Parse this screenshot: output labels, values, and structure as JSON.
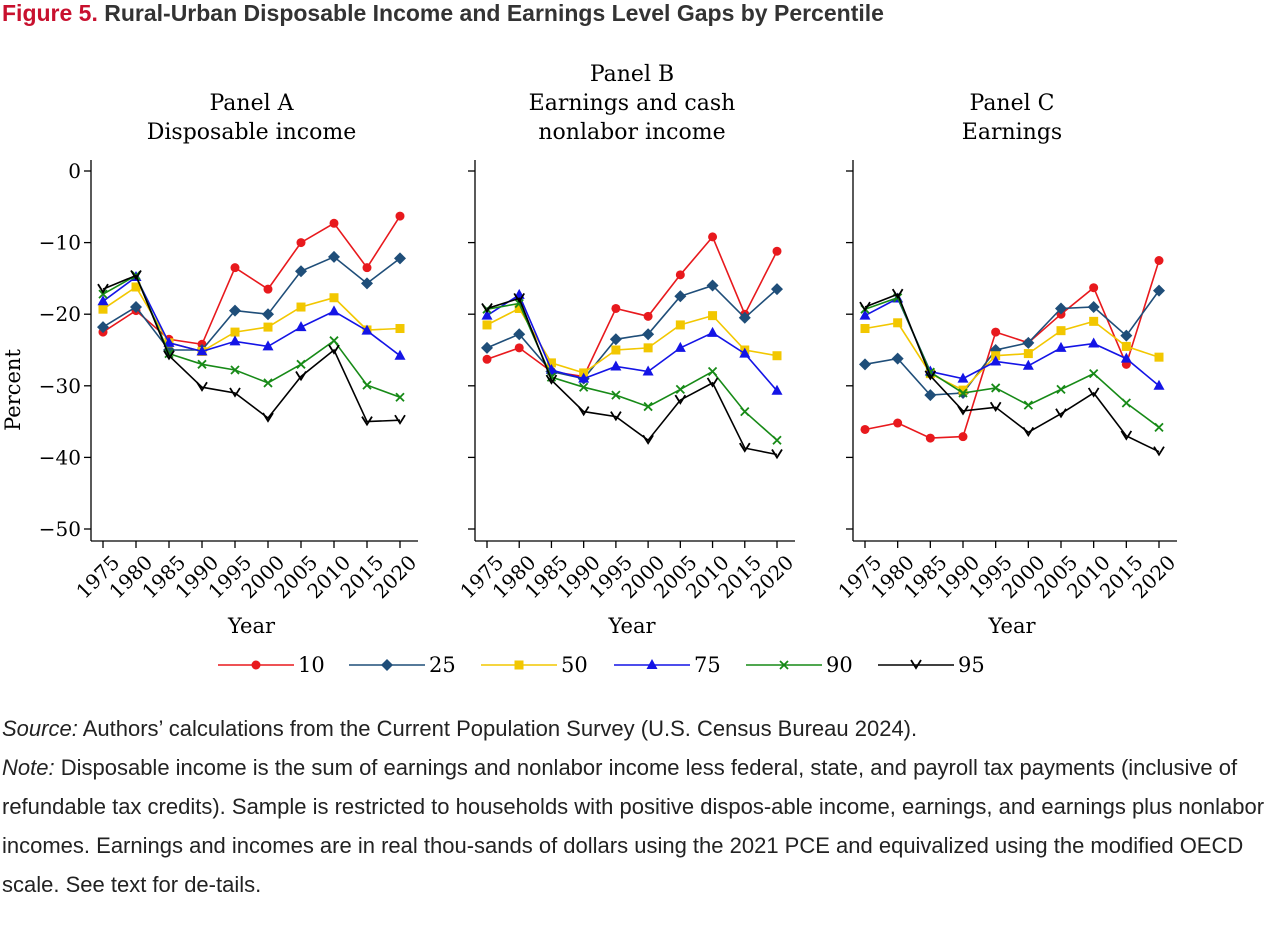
{
  "figure": {
    "label": "Figure 5.",
    "title": "Rural-Urban Disposable Income and Earnings Level Gaps by Percentile"
  },
  "notes": {
    "source_lead": "Source:",
    "source_text": "Authors’ calculations from the Current Population Survey (U.S. Census Bureau 2024).",
    "note_lead": "Note:",
    "note_text": "Disposable income is the sum of earnings and nonlabor income less federal, state, and payroll tax payments (inclusive of refundable tax credits). Sample is restricted to households with positive dispos-able income, earnings, and earnings plus nonlabor incomes. Earnings and incomes are in real thou-sands of dollars using the 2021 PCE and equivalized using the modified OECD scale. See text for de-tails."
  },
  "chart_data": {
    "type": "line",
    "x": [
      1975,
      1980,
      1985,
      1990,
      1995,
      2000,
      2005,
      2010,
      2015,
      2020
    ],
    "xlabel": "Year",
    "ylabel": "Percent",
    "ylim": [
      -50,
      0
    ],
    "yticks": [
      0,
      -10,
      -20,
      -30,
      -40,
      -50
    ],
    "ytick_labels": [
      "0",
      "−10",
      "−20",
      "−30",
      "−40",
      "−50"
    ],
    "grid": false,
    "legend_position": "bottom",
    "series_styles": [
      {
        "name": "10",
        "color": "#e8191d",
        "marker": "circle"
      },
      {
        "name": "25",
        "color": "#1f4e79",
        "marker": "diamond"
      },
      {
        "name": "50",
        "color": "#f2c700",
        "marker": "square"
      },
      {
        "name": "75",
        "color": "#1414e6",
        "marker": "triangle"
      },
      {
        "name": "90",
        "color": "#178a17",
        "marker": "x"
      },
      {
        "name": "95",
        "color": "#000000",
        "marker": "v"
      }
    ],
    "panels": [
      {
        "title_lines": [
          "Panel A",
          "Disposable income"
        ],
        "series": [
          {
            "name": "10",
            "values": [
              -22.5,
              -19.5,
              -23.5,
              -24.2,
              -13.5,
              -16.5,
              -10,
              -7.3,
              -13.5,
              -6.3
            ]
          },
          {
            "name": "25",
            "values": [
              -21.8,
              -19,
              -25,
              -25,
              -19.5,
              -20,
              -14,
              -12,
              -15.7,
              -12.2
            ]
          },
          {
            "name": "50",
            "values": [
              -19.3,
              -16.2,
              -24,
              -25.2,
              -22.5,
              -21.8,
              -19,
              -17.7,
              -22.2,
              -22
            ]
          },
          {
            "name": "75",
            "values": [
              -18.2,
              -14.8,
              -24,
              -25.2,
              -23.8,
              -24.5,
              -21.8,
              -19.6,
              -22.3,
              -25.8
            ]
          },
          {
            "name": "90",
            "values": [
              -17.2,
              -14.6,
              -25.5,
              -27,
              -27.8,
              -29.6,
              -27,
              -23.7,
              -29.9,
              -31.6
            ]
          },
          {
            "name": "95",
            "values": [
              -16.5,
              -14.6,
              -25.8,
              -30.2,
              -31,
              -34.5,
              -28.7,
              -25,
              -35,
              -34.8
            ]
          }
        ]
      },
      {
        "title_lines": [
          "Panel B",
          "Earnings and cash",
          "nonlabor income"
        ],
        "series": [
          {
            "name": "10",
            "values": [
              -26.3,
              -24.7,
              -28,
              -28.7,
              -19.2,
              -20.3,
              -14.5,
              -9.2,
              -20,
              -11.2
            ]
          },
          {
            "name": "25",
            "values": [
              -24.7,
              -22.8,
              -28,
              -29,
              -23.5,
              -22.8,
              -17.5,
              -16,
              -20.5,
              -16.5
            ]
          },
          {
            "name": "50",
            "values": [
              -21.5,
              -19.2,
              -26.8,
              -28.2,
              -25,
              -24.7,
              -21.5,
              -20.2,
              -25,
              -25.8
            ]
          },
          {
            "name": "75",
            "values": [
              -20.2,
              -17.3,
              -27.8,
              -29,
              -27.3,
              -28,
              -24.7,
              -22.6,
              -25.5,
              -30.7
            ]
          },
          {
            "name": "90",
            "values": [
              -19.3,
              -18.5,
              -28.8,
              -30.2,
              -31.3,
              -32.9,
              -30.5,
              -28,
              -33.6,
              -37.6
            ]
          },
          {
            "name": "95",
            "values": [
              -19.2,
              -17.8,
              -29.2,
              -33.6,
              -34.3,
              -37.6,
              -32,
              -29.6,
              -38.7,
              -39.6
            ]
          }
        ]
      },
      {
        "title_lines": [
          "Panel C",
          "Earnings"
        ],
        "series": [
          {
            "name": "10",
            "values": [
              -36.1,
              -35.2,
              -37.3,
              -37.1,
              -22.5,
              -24,
              -20,
              -16.3,
              -27,
              -12.5
            ]
          },
          {
            "name": "25",
            "values": [
              -27,
              -26.2,
              -31.3,
              -31,
              -25,
              -24,
              -19.2,
              -19,
              -23,
              -16.7
            ]
          },
          {
            "name": "50",
            "values": [
              -22,
              -21.2,
              -28.3,
              -30.6,
              -25.8,
              -25.5,
              -22.3,
              -21,
              -24.5,
              -26
            ]
          },
          {
            "name": "75",
            "values": [
              -20.2,
              -17.8,
              -28,
              -29,
              -26.6,
              -27.2,
              -24.7,
              -24.1,
              -26.2,
              -30
            ]
          },
          {
            "name": "90",
            "values": [
              -19.3,
              -17.7,
              -28.1,
              -31,
              -30.3,
              -32.7,
              -30.5,
              -28.3,
              -32.4,
              -35.8
            ]
          },
          {
            "name": "95",
            "values": [
              -19,
              -17.2,
              -28.6,
              -33.5,
              -33,
              -36.5,
              -33.9,
              -31,
              -37,
              -39.2
            ]
          }
        ]
      }
    ]
  }
}
